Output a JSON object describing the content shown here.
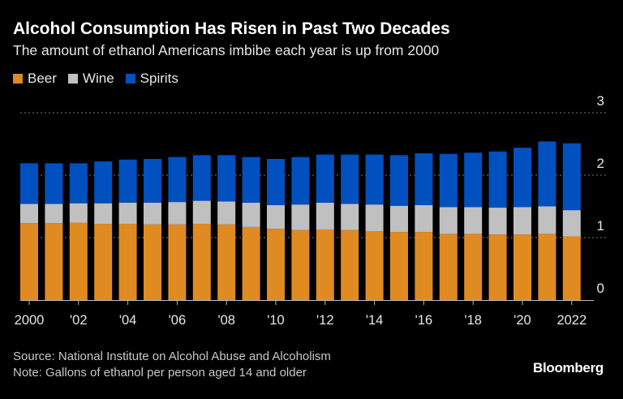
{
  "chart_data": {
    "type": "bar",
    "stacked": true,
    "title": "Alcohol Consumption Has Risen in Past Two Decades",
    "subtitle": "The amount of ethanol Americans imbibe each year is up from 2000",
    "categories": [
      2000,
      2001,
      2002,
      2003,
      2004,
      2005,
      2006,
      2007,
      2008,
      2009,
      2010,
      2011,
      2012,
      2013,
      2014,
      2015,
      2016,
      2017,
      2018,
      2019,
      2020,
      2021,
      2022
    ],
    "x_tick_labels": [
      {
        "year": 2000,
        "label": "2000"
      },
      {
        "year": 2002,
        "label": "'02"
      },
      {
        "year": 2004,
        "label": "'04"
      },
      {
        "year": 2006,
        "label": "'06"
      },
      {
        "year": 2008,
        "label": "'08"
      },
      {
        "year": 2010,
        "label": "'10"
      },
      {
        "year": 2012,
        "label": "'12"
      },
      {
        "year": 2014,
        "label": "'14"
      },
      {
        "year": 2016,
        "label": "'16"
      },
      {
        "year": 2018,
        "label": "'18"
      },
      {
        "year": 2020,
        "label": "'20"
      },
      {
        "year": 2022,
        "label": "2022"
      }
    ],
    "y_ticks": [
      "0",
      "1",
      "2",
      "3"
    ],
    "ylim": [
      0,
      3
    ],
    "grid": true,
    "legend": "top-left",
    "series": [
      {
        "name": "Beer",
        "color": "#e08a22",
        "values": [
          1.23,
          1.23,
          1.24,
          1.22,
          1.22,
          1.21,
          1.21,
          1.22,
          1.21,
          1.17,
          1.14,
          1.12,
          1.13,
          1.12,
          1.1,
          1.09,
          1.09,
          1.06,
          1.06,
          1.05,
          1.05,
          1.06,
          1.02
        ]
      },
      {
        "name": "Wine",
        "color": "#c0c0c0",
        "values": [
          0.31,
          0.31,
          0.31,
          0.33,
          0.34,
          0.35,
          0.36,
          0.37,
          0.37,
          0.39,
          0.38,
          0.41,
          0.43,
          0.42,
          0.43,
          0.42,
          0.43,
          0.43,
          0.43,
          0.43,
          0.44,
          0.44,
          0.42
        ]
      },
      {
        "name": "Spirits",
        "color": "#0050c0",
        "values": [
          0.65,
          0.65,
          0.64,
          0.67,
          0.69,
          0.7,
          0.72,
          0.73,
          0.74,
          0.73,
          0.74,
          0.76,
          0.77,
          0.79,
          0.8,
          0.81,
          0.83,
          0.85,
          0.87,
          0.9,
          0.95,
          1.04,
          1.07
        ]
      }
    ]
  },
  "footer": {
    "source": "Source: National Institute on Alcohol Abuse and Alcoholism",
    "note": "Note: Gallons of ethanol per person aged 14 and older"
  },
  "brand": "Bloomberg"
}
